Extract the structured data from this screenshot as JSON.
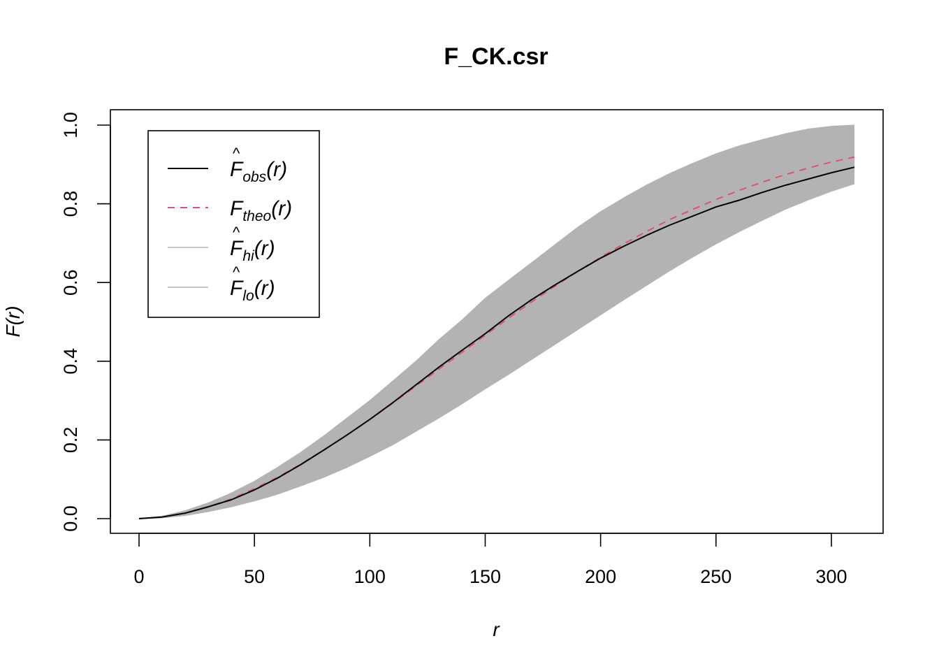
{
  "chart_data": {
    "type": "line",
    "title": "F_CK.csr",
    "xlabel": "r",
    "ylabel": "F(r)",
    "xlim": [
      0,
      310
    ],
    "ylim": [
      0,
      1
    ],
    "x_ticks": [
      0,
      50,
      100,
      150,
      200,
      250,
      300
    ],
    "x_tick_labels": [
      "0",
      "50",
      "100",
      "150",
      "200",
      "250",
      "300"
    ],
    "y_ticks": [
      0,
      0.2,
      0.4,
      0.6,
      0.8,
      1.0
    ],
    "y_tick_labels": [
      "0.0",
      "0.2",
      "0.4",
      "0.6",
      "0.8",
      "1.0"
    ],
    "grid": false,
    "legend_position": "top-left",
    "x": [
      0,
      10,
      20,
      30,
      40,
      50,
      60,
      70,
      80,
      90,
      100,
      110,
      120,
      130,
      140,
      150,
      160,
      170,
      180,
      190,
      200,
      210,
      220,
      230,
      240,
      250,
      260,
      270,
      280,
      290,
      300,
      310
    ],
    "series": [
      {
        "legend_base": "F",
        "legend_sub": "obs",
        "legend_hat": true,
        "color": "#000000",
        "dash": "solid",
        "values": [
          0,
          0.004,
          0.014,
          0.03,
          0.048,
          0.073,
          0.103,
          0.137,
          0.174,
          0.212,
          0.252,
          0.295,
          0.34,
          0.385,
          0.428,
          0.47,
          0.515,
          0.556,
          0.593,
          0.628,
          0.662,
          0.692,
          0.72,
          0.746,
          0.769,
          0.792,
          0.809,
          0.829,
          0.847,
          0.863,
          0.879,
          0.893
        ]
      },
      {
        "legend_base": "F",
        "legend_sub": "theo",
        "legend_hat": false,
        "color": "#df536b",
        "dash": "dashed",
        "values": [
          0,
          0.004,
          0.014,
          0.03,
          0.05,
          0.076,
          0.105,
          0.138,
          0.174,
          0.212,
          0.252,
          0.294,
          0.337,
          0.38,
          0.423,
          0.466,
          0.509,
          0.55,
          0.59,
          0.628,
          0.664,
          0.698,
          0.73,
          0.76,
          0.786,
          0.811,
          0.834,
          0.855,
          0.874,
          0.891,
          0.906,
          0.919
        ]
      },
      {
        "legend_base": "F",
        "legend_sub": "hi",
        "legend_hat": true,
        "color": "#b3b3b3",
        "dash": "solid",
        "values": [
          0,
          0.006,
          0.02,
          0.04,
          0.065,
          0.095,
          0.13,
          0.168,
          0.21,
          0.255,
          0.3,
          0.35,
          0.4,
          0.455,
          0.505,
          0.56,
          0.605,
          0.65,
          0.695,
          0.74,
          0.78,
          0.815,
          0.848,
          0.877,
          0.903,
          0.927,
          0.947,
          0.963,
          0.978,
          0.99,
          0.997,
          1.0
        ]
      },
      {
        "legend_base": "F",
        "legend_sub": "lo",
        "legend_hat": true,
        "color": "#b3b3b3",
        "dash": "solid",
        "values": [
          0,
          0.002,
          0.008,
          0.018,
          0.03,
          0.045,
          0.062,
          0.083,
          0.105,
          0.13,
          0.158,
          0.188,
          0.222,
          0.256,
          0.292,
          0.33,
          0.366,
          0.404,
          0.442,
          0.48,
          0.518,
          0.556,
          0.593,
          0.63,
          0.665,
          0.698,
          0.729,
          0.758,
          0.786,
          0.81,
          0.832,
          0.851
        ]
      }
    ]
  }
}
